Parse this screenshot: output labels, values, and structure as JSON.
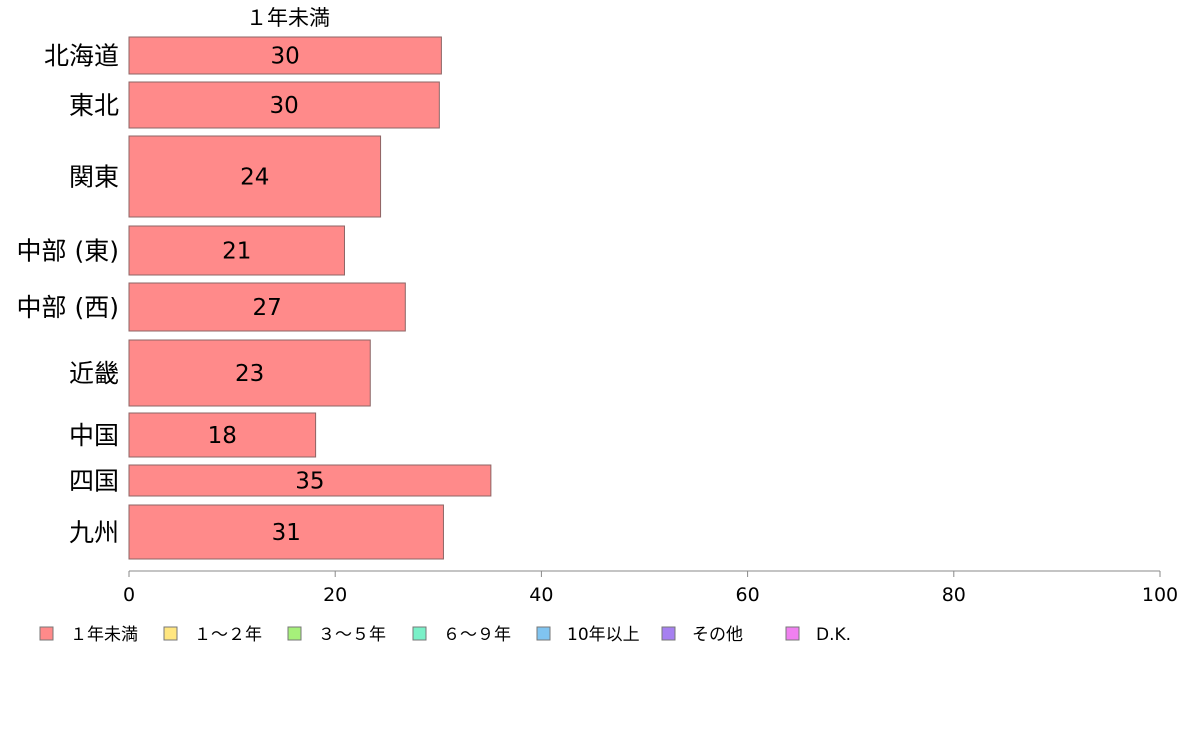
{
  "chart_data": {
    "type": "bar",
    "orientation": "horizontal",
    "title": "",
    "column_title": "１年未満",
    "categories": [
      "北海道",
      "東北",
      "関東",
      "中部 (東)",
      "中部 (西)",
      "近畿",
      "中国",
      "四国",
      "九州"
    ],
    "series": [
      {
        "name": "１年未満",
        "color": "#ff8a8a",
        "values": [
          30.3,
          30.1,
          24.4,
          20.9,
          26.8,
          23.4,
          18.1,
          35.1,
          30.5
        ],
        "labels": [
          "30",
          "30",
          "24",
          "21",
          "27",
          "23",
          "18",
          "35",
          "31"
        ]
      }
    ],
    "xlim": [
      0,
      100
    ],
    "xticks": [
      0,
      20,
      40,
      60,
      80,
      100
    ],
    "xtick_labels": [
      "0",
      "20",
      "40",
      "60",
      "80",
      "100"
    ],
    "grid": false,
    "legend_position": "bottom",
    "legend": [
      {
        "label": "１年未満",
        "color": "#ff8a8a"
      },
      {
        "label": "１～２年",
        "color": "#ffe680"
      },
      {
        "label": "３～５年",
        "color": "#a6f07a"
      },
      {
        "label": "６～９年",
        "color": "#7af0c8"
      },
      {
        "label": "10年以上",
        "color": "#80c4f0"
      },
      {
        "label": "その他",
        "color": "#a680f0"
      },
      {
        "label": "D.K.",
        "color": "#f080f0"
      }
    ]
  }
}
